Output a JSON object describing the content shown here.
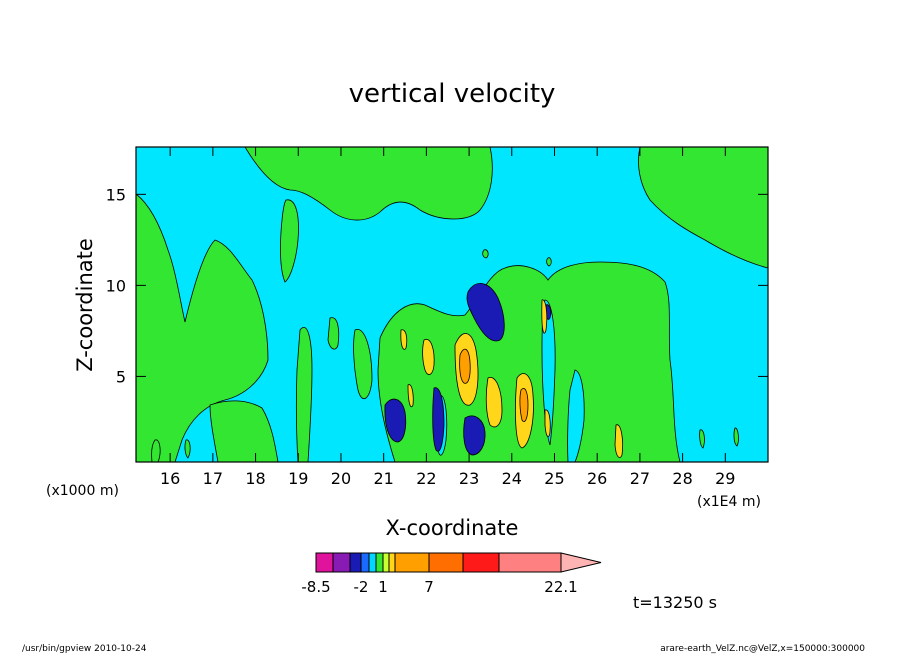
{
  "chart_data": {
    "type": "heatmap",
    "title": "vertical velocity",
    "xlabel": "X-coordinate",
    "ylabel": "Z-coordinate",
    "x_unit": "(x1000 m)",
    "x_unit_right": "(x1E4 m)",
    "xlim": [
      15.2,
      30.0
    ],
    "ylim": [
      0.3,
      17.6
    ],
    "xticks": [
      16,
      17,
      18,
      19,
      20,
      21,
      22,
      23,
      24,
      25,
      26,
      27,
      28,
      29
    ],
    "yticks": [
      5,
      10,
      15
    ],
    "colorbar": {
      "colors": [
        "#e0149c",
        "#8a1ab4",
        "#1a1ab4",
        "#1a6aff",
        "#00d6ff",
        "#32e632",
        "#c8ff32",
        "#ffd61a",
        "#ffa000",
        "#ff6e00",
        "#ff1a1a",
        "#ff8080",
        "#ffb4b4"
      ],
      "tick_labels": [
        "-8.5",
        "-2",
        "1",
        "7",
        "22.1"
      ]
    },
    "regions": [
      {
        "level": "positive-weak",
        "color": "#32e632",
        "x": [
          15.2,
          18.6
        ],
        "z": [
          0.3,
          14.0
        ]
      },
      {
        "level": "positive-weak",
        "color": "#32e632",
        "x": [
          18.6,
          25.4
        ],
        "z": [
          13.0,
          17.6
        ]
      },
      {
        "level": "positive-weak",
        "color": "#32e632",
        "x": [
          25.4,
          27.3
        ],
        "z": [
          0.3,
          10.5
        ]
      },
      {
        "level": "negative",
        "color": "#1a1ab4",
        "x": [
          22.9,
          23.5
        ],
        "z": [
          7.0,
          9.8
        ]
      },
      {
        "level": "positive-strong",
        "color": "#ffd61a",
        "x": [
          22.7,
          23.0
        ],
        "z": [
          4.0,
          6.8
        ]
      },
      {
        "level": "positive-strong",
        "color": "#ffd61a",
        "x": [
          24.1,
          24.4
        ],
        "z": [
          1.0,
          4.5
        ]
      }
    ]
  },
  "annotation": {
    "time": "t=13250 s"
  },
  "footer": {
    "left": "/usr/bin/gpview   2010-10-24",
    "right": "arare-earth_VelZ.nc@VelZ,x=150000:300000"
  }
}
